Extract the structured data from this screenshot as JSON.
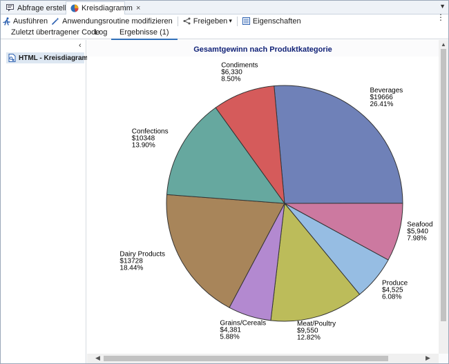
{
  "tabs": [
    {
      "label": "Abfrage erstellen",
      "icon": "query-icon"
    },
    {
      "label": "Kreisdiagramm",
      "icon": "pie-chart-icon",
      "close": "×"
    }
  ],
  "tab_menu_icon": "▼",
  "toolbar": {
    "run": "Ausführen",
    "modify": "Anwendungsroutine modifizieren",
    "share": "Freigeben",
    "share_arrow": "▾",
    "properties": "Eigenschaften",
    "more": "⋮"
  },
  "subtabs": [
    {
      "label": "Zuletzt übertragener Code"
    },
    {
      "label": "Log"
    },
    {
      "label": "Ergebnisse (1)"
    }
  ],
  "left_pane": {
    "collapse": "‹",
    "item": "HTML - Kreisdiagramm"
  },
  "colors": {
    "accent": "#2f6fb8",
    "title": "#112277"
  },
  "chart_data": {
    "type": "pie",
    "title": "Gesamtgewinn nach Produktkategorie",
    "slices": [
      {
        "name": "Beverages",
        "value": 19666,
        "value_label": "$19666",
        "percent": 26.41,
        "percent_label": "26.41%",
        "color": "#6f81b8"
      },
      {
        "name": "Seafood",
        "value": 5940,
        "value_label": "$5,940",
        "percent": 7.98,
        "percent_label": "7.98%",
        "color": "#cc79a0"
      },
      {
        "name": "Produce",
        "value": 4525,
        "value_label": "$4,525",
        "percent": 6.08,
        "percent_label": "6.08%",
        "color": "#96bde3"
      },
      {
        "name": "Meat/Poultry",
        "value": 9550,
        "value_label": "$9,550",
        "percent": 12.82,
        "percent_label": "12.82%",
        "color": "#bcbc5a"
      },
      {
        "name": "Grains/Cereals",
        "value": 4381,
        "value_label": "$4,381",
        "percent": 5.88,
        "percent_label": "5.88%",
        "color": "#b389d0"
      },
      {
        "name": "Dairy Products",
        "value": 13728,
        "value_label": "$13728",
        "percent": 18.44,
        "percent_label": "18.44%",
        "color": "#a8855a"
      },
      {
        "name": "Confections",
        "value": 10348,
        "value_label": "$10348",
        "percent": 13.9,
        "percent_label": "13.90%",
        "color": "#66a89f"
      },
      {
        "name": "Condiments",
        "value": 6330,
        "value_label": "$6,330",
        "percent": 8.5,
        "percent_label": "8.50%",
        "color": "#d55b5b"
      }
    ]
  }
}
